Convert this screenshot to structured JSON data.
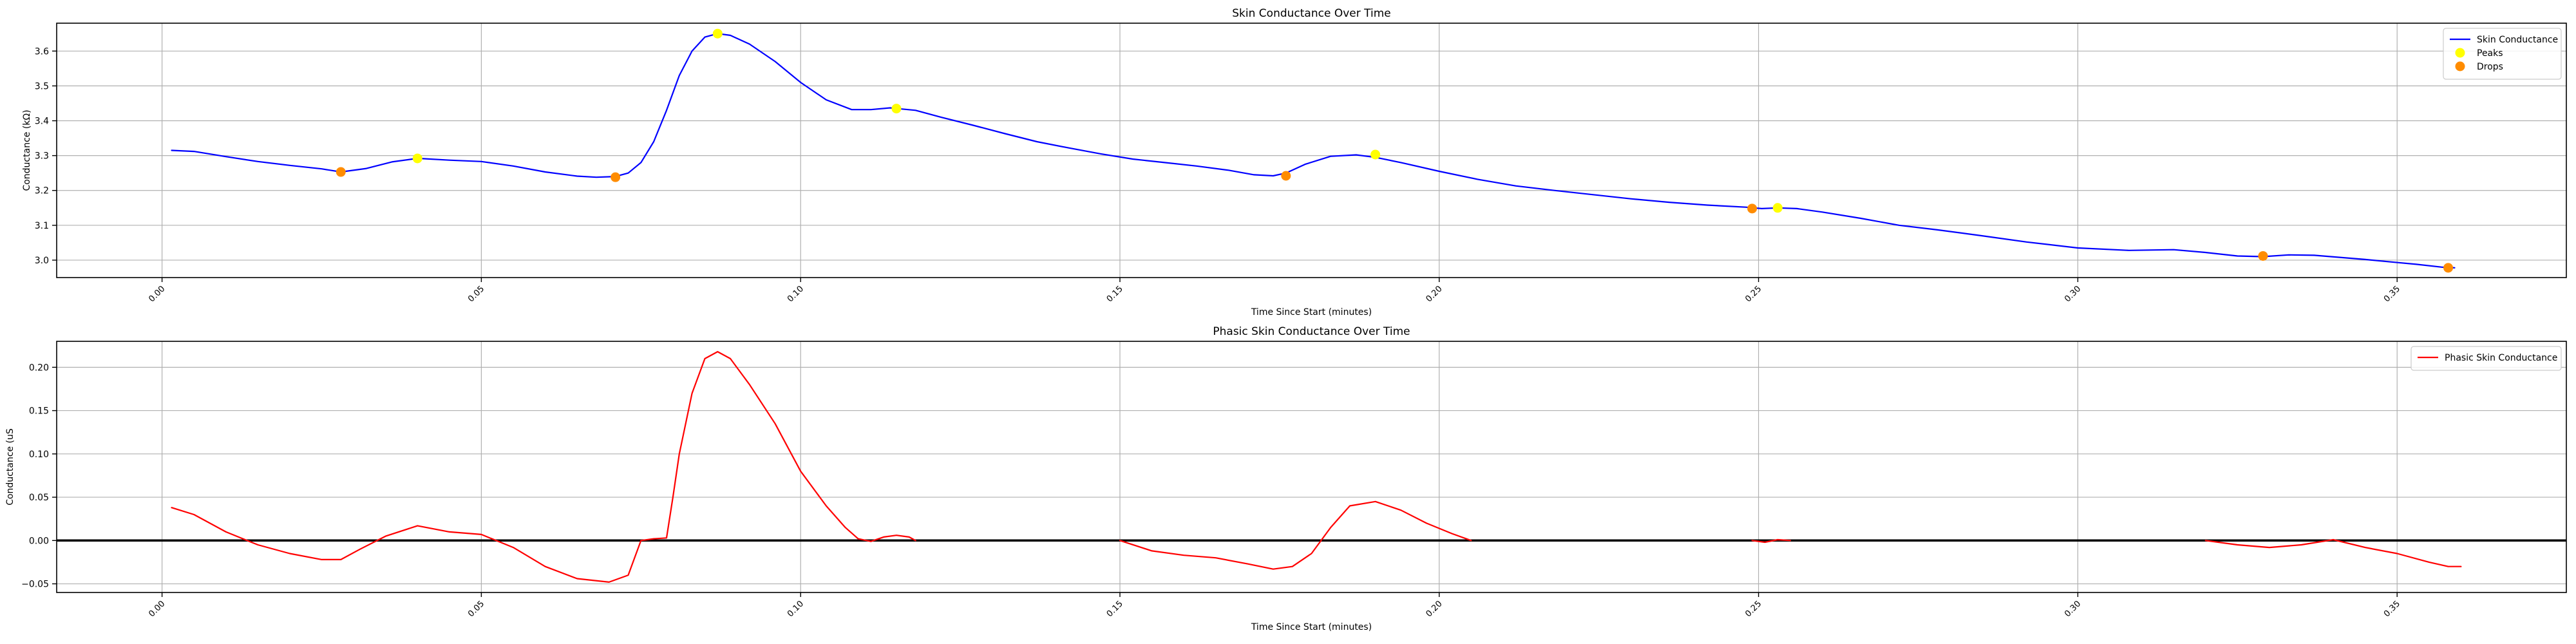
{
  "colors": {
    "tonic_line": "#0000ff",
    "peaks": "#ffff00",
    "drops": "#ff8c00",
    "phasic_line": "#ff0000",
    "zero_line": "#000000",
    "grid": "#b0b0b0"
  },
  "chart_data": [
    {
      "type": "line",
      "title": "Skin Conductance Over Time",
      "xlabel": "Time Since Start (minutes)",
      "ylabel": "Conductance (kΩ)",
      "xlim": [
        -0.0165,
        0.3765
      ],
      "ylim": [
        2.95,
        3.68
      ],
      "xticks": [
        0.0,
        0.05,
        0.1,
        0.15,
        0.2,
        0.25,
        0.3,
        0.35
      ],
      "xtick_labels": [
        "0.00",
        "0.05",
        "0.10",
        "0.15",
        "0.20",
        "0.25",
        "0.30",
        "0.35"
      ],
      "yticks": [
        3.0,
        3.1,
        3.2,
        3.3,
        3.4,
        3.5,
        3.6
      ],
      "ytick_labels": [
        "3.0",
        "3.1",
        "3.2",
        "3.3",
        "3.4",
        "3.5",
        "3.6"
      ],
      "grid": true,
      "legend_position": "top-right",
      "series": [
        {
          "name": "Skin Conductance",
          "type": "line",
          "x": [
            0.0015,
            0.005,
            0.01,
            0.015,
            0.02,
            0.025,
            0.028,
            0.032,
            0.036,
            0.04,
            0.045,
            0.05,
            0.055,
            0.06,
            0.065,
            0.068,
            0.071,
            0.073,
            0.075,
            0.077,
            0.079,
            0.081,
            0.083,
            0.085,
            0.087,
            0.089,
            0.092,
            0.096,
            0.1,
            0.104,
            0.108,
            0.111,
            0.114,
            0.118,
            0.122,
            0.127,
            0.132,
            0.137,
            0.142,
            0.147,
            0.152,
            0.157,
            0.162,
            0.167,
            0.171,
            0.174,
            0.176,
            0.179,
            0.183,
            0.187,
            0.19,
            0.194,
            0.2,
            0.206,
            0.212,
            0.218,
            0.224,
            0.23,
            0.236,
            0.242,
            0.248,
            0.2505,
            0.253,
            0.256,
            0.26,
            0.266,
            0.272,
            0.278,
            0.285,
            0.292,
            0.3,
            0.308,
            0.315,
            0.32,
            0.325,
            0.329,
            0.333,
            0.337,
            0.341,
            0.345,
            0.349,
            0.353,
            0.357,
            0.359
          ],
          "values": [
            3.315,
            3.312,
            3.297,
            3.283,
            3.272,
            3.262,
            3.253,
            3.263,
            3.282,
            3.292,
            3.287,
            3.283,
            3.27,
            3.253,
            3.241,
            3.238,
            3.24,
            3.25,
            3.28,
            3.34,
            3.43,
            3.53,
            3.6,
            3.64,
            3.65,
            3.645,
            3.62,
            3.57,
            3.51,
            3.46,
            3.432,
            3.432,
            3.437,
            3.43,
            3.41,
            3.387,
            3.363,
            3.34,
            3.322,
            3.305,
            3.29,
            3.28,
            3.27,
            3.258,
            3.245,
            3.242,
            3.25,
            3.275,
            3.298,
            3.302,
            3.295,
            3.28,
            3.255,
            3.232,
            3.213,
            3.2,
            3.188,
            3.176,
            3.166,
            3.158,
            3.152,
            3.148,
            3.15,
            3.148,
            3.138,
            3.12,
            3.1,
            3.087,
            3.07,
            3.052,
            3.035,
            3.028,
            3.03,
            3.022,
            3.012,
            3.01,
            3.015,
            3.014,
            3.008,
            3.002,
            2.995,
            2.988,
            2.98,
            2.978
          ]
        },
        {
          "name": "Peaks",
          "type": "scatter",
          "x": [
            0.04,
            0.087,
            0.115,
            0.19,
            0.253
          ],
          "values": [
            3.292,
            3.65,
            3.435,
            3.303,
            3.15
          ]
        },
        {
          "name": "Drops",
          "type": "scatter",
          "x": [
            0.028,
            0.071,
            0.176,
            0.249,
            0.329,
            0.358
          ],
          "values": [
            3.253,
            3.238,
            3.242,
            3.148,
            3.012,
            2.978
          ]
        }
      ]
    },
    {
      "type": "line",
      "title": "Phasic Skin Conductance Over Time",
      "xlabel": "Time Since Start (minutes)",
      "ylabel": "Conductance (uS",
      "xlim": [
        -0.0165,
        0.3765
      ],
      "ylim": [
        -0.06,
        0.23
      ],
      "xticks": [
        0.0,
        0.05,
        0.1,
        0.15,
        0.2,
        0.25,
        0.3,
        0.35
      ],
      "xtick_labels": [
        "0.00",
        "0.05",
        "0.10",
        "0.15",
        "0.20",
        "0.25",
        "0.30",
        "0.35"
      ],
      "yticks": [
        -0.05,
        0.0,
        0.05,
        0.1,
        0.15,
        0.2
      ],
      "ytick_labels": [
        "−0.05",
        "0.00",
        "0.05",
        "0.10",
        "0.15",
        "0.20"
      ],
      "grid": true,
      "legend_position": "top-right",
      "reference_line": 0.0,
      "series": [
        {
          "name": "Phasic Skin Conductance",
          "type": "line",
          "segments": [
            {
              "x": [
                0.0015,
                0.005,
                0.01,
                0.015,
                0.02,
                0.025,
                0.028,
                0.031,
                0.035,
                0.04,
                0.045,
                0.05,
                0.055,
                0.06,
                0.065,
                0.07,
                0.073,
                0.075,
                0.077,
                0.079,
                0.08,
                0.081,
                0.083,
                0.085,
                0.087,
                0.089,
                0.092,
                0.096,
                0.1,
                0.104,
                0.107,
                0.109,
                0.111,
                0.113,
                0.115,
                0.117,
                0.118
              ],
              "values": [
                0.038,
                0.03,
                0.01,
                -0.005,
                -0.015,
                -0.022,
                -0.022,
                -0.01,
                0.005,
                0.017,
                0.01,
                0.007,
                -0.008,
                -0.03,
                -0.044,
                -0.048,
                -0.04,
                0.0,
                0.002,
                0.003,
                0.05,
                0.1,
                0.17,
                0.21,
                0.218,
                0.21,
                0.18,
                0.135,
                0.08,
                0.04,
                0.015,
                0.002,
                -0.001,
                0.004,
                0.006,
                0.004,
                0.0
              ]
            },
            {
              "x": [
                0.15,
                0.155,
                0.16,
                0.165,
                0.17,
                0.174,
                0.177,
                0.18,
                0.183,
                0.186,
                0.19,
                0.194,
                0.198,
                0.202,
                0.205
              ],
              "values": [
                0.0,
                -0.012,
                -0.017,
                -0.02,
                -0.027,
                -0.033,
                -0.03,
                -0.015,
                0.015,
                0.04,
                0.045,
                0.035,
                0.02,
                0.008,
                0.0
              ]
            },
            {
              "x": [
                0.249,
                0.251,
                0.253,
                0.255
              ],
              "values": [
                0.0,
                -0.002,
                0.001,
                0.0
              ]
            },
            {
              "x": [
                0.32,
                0.325,
                0.33,
                0.335,
                0.34,
                0.345,
                0.35,
                0.355,
                0.358,
                0.36
              ],
              "values": [
                0.0,
                -0.005,
                -0.008,
                -0.005,
                0.001,
                -0.008,
                -0.015,
                -0.025,
                -0.03,
                -0.03
              ]
            }
          ]
        }
      ]
    }
  ]
}
